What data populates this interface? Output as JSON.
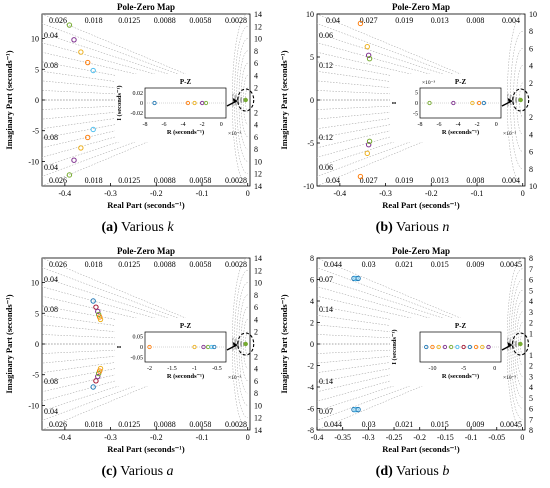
{
  "colors": {
    "axis": "#000000",
    "grid": "#9a9a9a",
    "series": [
      "#1f77b4",
      "#ff7f0e",
      "#edb120",
      "#7e2f8e",
      "#77ac30",
      "#4dbeee",
      "#a2142f"
    ]
  },
  "chart_data": [
    {
      "id": "a",
      "type": "scatter",
      "title": "Pole-Zero Map",
      "xlabel": "Real Part (seconds⁻¹)",
      "ylabel": "Imaginary Part (seconds⁻¹)",
      "xlim": [
        -0.45,
        0.005
      ],
      "ylim": [
        -14,
        14
      ],
      "xticks": [
        "-0.4",
        "-0.3",
        "-0.2",
        "-0.1",
        "0"
      ],
      "yticks": [
        "-10",
        "-5",
        "0",
        "5",
        "10"
      ],
      "damping_top": [
        "0.026",
        "0.018",
        "0.0125",
        "0.0088",
        "0.0058",
        "0.0028"
      ],
      "damping_left": [
        "0.04",
        "0.08"
      ],
      "freq_labels": [
        "14",
        "12",
        "10",
        "8",
        "6",
        "4",
        "2"
      ],
      "caption": {
        "prefix": "(a)",
        "text": "Various ",
        "var": "k"
      },
      "marker": "o",
      "poles": [
        {
          "re": -0.39,
          "im": 12.2,
          "c": 4
        },
        {
          "re": -0.38,
          "im": 9.8,
          "c": 3
        },
        {
          "re": -0.365,
          "im": 7.8,
          "c": 2
        },
        {
          "re": -0.35,
          "im": 6.1,
          "c": 1
        },
        {
          "re": -0.338,
          "im": 4.8,
          "c": 5
        },
        {
          "re": -0.39,
          "im": -12.2,
          "c": 4
        },
        {
          "re": -0.38,
          "im": -9.8,
          "c": 3
        },
        {
          "re": -0.365,
          "im": -7.8,
          "c": 2
        },
        {
          "re": -0.35,
          "im": -6.1,
          "c": 1
        },
        {
          "re": -0.338,
          "im": -4.8,
          "c": 5
        }
      ],
      "inset": {
        "title": "P-Z",
        "xlabel": "R (seconds⁻¹)",
        "ylabel": "I (seconds⁻¹)",
        "xticks": [
          "-8",
          "-6",
          "-4",
          "-2",
          "0"
        ],
        "yticks": [
          "0.02",
          "0",
          "-0.02"
        ],
        "xmult": "×10⁻³",
        "ymult": "",
        "xlim": [
          -8,
          0.5
        ],
        "ylim": [
          -0.03,
          0.03
        ],
        "points": [
          {
            "re": -7.0,
            "im": 0,
            "c": 0
          },
          {
            "re": -3.5,
            "im": 0,
            "c": 1
          },
          {
            "re": -2.8,
            "im": 0,
            "c": 2
          },
          {
            "re": -2.0,
            "im": 0,
            "c": 3
          },
          {
            "re": -1.6,
            "im": 0,
            "c": 4
          }
        ]
      }
    },
    {
      "id": "b",
      "type": "scatter",
      "title": "Pole-Zero Map",
      "xlabel": "Real Part (seconds⁻¹)",
      "ylabel": "Imaginary Part (seconds⁻¹)",
      "xlim": [
        -0.45,
        0.005
      ],
      "ylim": [
        -10,
        10
      ],
      "xticks": [
        "-0.4",
        "-0.3",
        "-0.2",
        "-0.1",
        "0"
      ],
      "yticks": [
        "-10",
        "-5",
        "0",
        "5",
        "10"
      ],
      "damping_top": [
        "0.04",
        "0.027",
        "0.019",
        "0.013",
        "0.008",
        "0.004"
      ],
      "damping_left": [
        "0.06",
        "0.12"
      ],
      "freq_labels": [
        "10",
        "8",
        "6",
        "4",
        "2"
      ],
      "caption": {
        "prefix": "(b)",
        "text": "Various ",
        "var": "n"
      },
      "marker": "o",
      "poles": [
        {
          "re": -0.355,
          "im": 8.9,
          "c": 1
        },
        {
          "re": -0.34,
          "im": 6.2,
          "c": 2
        },
        {
          "re": -0.337,
          "im": 5.2,
          "c": 3
        },
        {
          "re": -0.335,
          "im": 4.8,
          "c": 4
        },
        {
          "re": -0.355,
          "im": -8.9,
          "c": 1
        },
        {
          "re": -0.34,
          "im": -6.2,
          "c": 2
        },
        {
          "re": -0.337,
          "im": -5.2,
          "c": 3
        },
        {
          "re": -0.335,
          "im": -4.8,
          "c": 4
        }
      ],
      "inset": {
        "title": "P-Z",
        "xlabel": "R (seconds⁻¹)",
        "ylabel": "I",
        "xticks": [
          "-8",
          "-6",
          "-4",
          "-2",
          "0"
        ],
        "yticks": [
          "5",
          "0",
          "-5"
        ],
        "xmult": "×10⁻³",
        "ymult": "×10⁻³",
        "xlim": [
          -8,
          0.5
        ],
        "ylim": [
          -7,
          7
        ],
        "points": [
          {
            "re": -7.0,
            "im": 0,
            "c": 4
          },
          {
            "re": -4.5,
            "im": 0,
            "c": 3
          },
          {
            "re": -2.5,
            "im": 0,
            "c": 2
          },
          {
            "re": -1.8,
            "im": 0,
            "c": 1
          },
          {
            "re": -1.3,
            "im": 0,
            "c": 0
          }
        ]
      }
    },
    {
      "id": "c",
      "type": "scatter",
      "title": "Pole-Zero Map",
      "xlabel": "Real Part (seconds⁻¹)",
      "ylabel": "Imaginary Part (seconds⁻¹)",
      "xlim": [
        -0.45,
        0.005
      ],
      "ylim": [
        -14,
        14
      ],
      "xticks": [
        "-0.4",
        "-0.3",
        "-0.2",
        "-0.1",
        "0"
      ],
      "yticks": [
        "-10",
        "-5",
        "0",
        "5",
        "10"
      ],
      "damping_top": [
        "0.026",
        "0.018",
        "0.0125",
        "0.0088",
        "0.0058",
        "0.0028"
      ],
      "damping_left": [
        "0.04",
        "0.08"
      ],
      "freq_labels": [
        "14",
        "12",
        "10",
        "8",
        "6",
        "4",
        "2"
      ],
      "caption": {
        "prefix": "(c)",
        "text": "Various ",
        "var": "a"
      },
      "marker": "o",
      "poles": [
        {
          "re": -0.338,
          "im": 7.0,
          "c": 0
        },
        {
          "re": -0.332,
          "im": 6.0,
          "c": 6
        },
        {
          "re": -0.328,
          "im": 5.3,
          "c": 3
        },
        {
          "re": -0.326,
          "im": 4.8,
          "c": 4
        },
        {
          "re": -0.324,
          "im": 4.4,
          "c": 1
        },
        {
          "re": -0.322,
          "im": 4.0,
          "c": 2
        },
        {
          "re": -0.338,
          "im": -7.0,
          "c": 0
        },
        {
          "re": -0.332,
          "im": -6.0,
          "c": 6
        },
        {
          "re": -0.328,
          "im": -5.3,
          "c": 3
        },
        {
          "re": -0.326,
          "im": -4.8,
          "c": 4
        },
        {
          "re": -0.324,
          "im": -4.4,
          "c": 1
        },
        {
          "re": -0.322,
          "im": -4.0,
          "c": 2
        }
      ],
      "inset": {
        "title": "P-Z",
        "xlabel": "R (seconds⁻¹)",
        "ylabel": "I",
        "xticks": [
          "-2",
          "-1.5",
          "-1",
          "-0.5"
        ],
        "yticks": [
          "0.05",
          "0",
          "-0.05"
        ],
        "xmult": "×10⁻³",
        "ymult": "",
        "xlim": [
          -2.1,
          -0.3
        ],
        "ylim": [
          -0.07,
          0.07
        ],
        "points": [
          {
            "re": -2.0,
            "im": 0,
            "c": 1
          },
          {
            "re": -1.0,
            "im": 0,
            "c": 2
          },
          {
            "re": -0.8,
            "im": 0,
            "c": 3
          },
          {
            "re": -0.7,
            "im": 0,
            "c": 4
          },
          {
            "re": -0.62,
            "im": 0,
            "c": 5
          },
          {
            "re": -0.56,
            "im": 0,
            "c": 0
          }
        ]
      }
    },
    {
      "id": "d",
      "type": "scatter",
      "title": "Pole-Zero Map",
      "xlabel": "Real Part (seconds⁻¹)",
      "ylabel": "Imaginary Part (seconds⁻¹)",
      "xlim": [
        -0.4,
        0.005
      ],
      "ylim": [
        -8,
        8
      ],
      "xticks": [
        "-0.4",
        "-0.35",
        "-0.3",
        "-0.25",
        "-0.2",
        "-0.15",
        "-0.1",
        "-0.05",
        "0"
      ],
      "yticks": [
        "-8",
        "-6",
        "-4",
        "-2",
        "0",
        "2",
        "4",
        "6",
        "8"
      ],
      "damping_top": [
        "0.044",
        "0.03",
        "0.021",
        "0.015",
        "0.009",
        "0.0045"
      ],
      "damping_left": [
        "0.07",
        "0.14"
      ],
      "freq_labels": [
        "8",
        "7",
        "6",
        "5",
        "4",
        "3",
        "2",
        "1"
      ],
      "caption": {
        "prefix": "(d)",
        "text": "Various ",
        "var": "b"
      },
      "marker": "o",
      "poles": [
        {
          "re": -0.328,
          "im": 6.1,
          "c": 0
        },
        {
          "re": -0.324,
          "im": 6.1,
          "c": 5
        },
        {
          "re": -0.32,
          "im": 6.1,
          "c": 0
        },
        {
          "re": -0.328,
          "im": -6.1,
          "c": 0
        },
        {
          "re": -0.324,
          "im": -6.1,
          "c": 5
        },
        {
          "re": -0.32,
          "im": -6.1,
          "c": 0
        }
      ],
      "inset": {
        "title": "P-Z",
        "xlabel": "R (seconds⁻¹)",
        "ylabel": "I (seconds⁻¹)",
        "xticks": [
          "-10",
          "-5",
          "0"
        ],
        "yticks": [],
        "xmult": "×10⁻³",
        "ymult": "",
        "xlim": [
          -12,
          1
        ],
        "ylim": [
          -1,
          1
        ],
        "points": [
          {
            "re": -11,
            "im": 0,
            "c": 0
          },
          {
            "re": -10,
            "im": 0,
            "c": 1
          },
          {
            "re": -9,
            "im": 0,
            "c": 2
          },
          {
            "re": -8,
            "im": 0,
            "c": 3
          },
          {
            "re": -7,
            "im": 0,
            "c": 4
          },
          {
            "re": -6,
            "im": 0,
            "c": 5
          },
          {
            "re": -5,
            "im": 0,
            "c": 6
          },
          {
            "re": -4,
            "im": 0,
            "c": 0
          },
          {
            "re": -3,
            "im": 0,
            "c": 1
          },
          {
            "re": -2,
            "im": 0,
            "c": 2
          },
          {
            "re": -1,
            "im": 0,
            "c": 3
          }
        ]
      }
    }
  ]
}
